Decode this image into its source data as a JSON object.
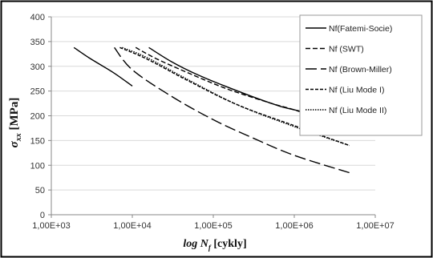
{
  "chart_data": {
    "type": "line",
    "xscale": "log",
    "xlim": [
      1000,
      10000000
    ],
    "ylim": [
      0,
      400
    ],
    "yticks": [
      0,
      50,
      100,
      150,
      200,
      250,
      300,
      350,
      400
    ],
    "xticks": [
      1000,
      10000,
      100000,
      1000000,
      10000000
    ],
    "ytick_labels": [
      "0",
      "50",
      "100",
      "150",
      "200",
      "250",
      "300",
      "350",
      "400"
    ],
    "xtick_labels": [
      "1,00E+03",
      "1,00E+04",
      "1,00E+05",
      "1,00E+06",
      "1,00E+07"
    ],
    "grid": "horizontal",
    "legend_position": "top-right",
    "ylabel": {
      "symbol": "σ",
      "sub": "xx",
      "unit": " [MPa]"
    },
    "xlabel": {
      "prefix": "log ",
      "symbol": "N",
      "sub": "f",
      "unit": " [cykly]"
    },
    "series": [
      {
        "name": "Nf(Fatemi-Socie)",
        "dash": "solid",
        "color": "#000000",
        "points": [
          [
            16000,
            338
          ],
          [
            30000,
            310
          ],
          [
            60000,
            285
          ],
          [
            150000,
            258
          ],
          [
            500000,
            226
          ],
          [
            1000000,
            212
          ],
          [
            4800000,
            190
          ]
        ]
      },
      {
        "name": "Nf (SWT)",
        "dash": "short",
        "color": "#000000",
        "points": [
          [
            11000,
            338
          ],
          [
            20000,
            315
          ],
          [
            50000,
            286
          ],
          [
            150000,
            254
          ],
          [
            500000,
            226
          ],
          [
            1000000,
            212
          ],
          [
            2500000,
            190
          ]
        ]
      },
      {
        "name": "Nf (Brown-Miller)",
        "dash": "long",
        "color": "#000000",
        "points": [
          [
            6000,
            338
          ],
          [
            10000,
            293
          ],
          [
            30000,
            240
          ],
          [
            100000,
            192
          ],
          [
            300000,
            156
          ],
          [
            1000000,
            120
          ],
          [
            5000000,
            84
          ]
        ]
      },
      {
        "name": "Nf (Liu Mode I)",
        "dash": "medium",
        "color": "#000000",
        "points": [
          [
            7000,
            338
          ],
          [
            15000,
            315
          ],
          [
            50000,
            270
          ],
          [
            200000,
            222
          ],
          [
            1000000,
            180
          ],
          [
            4800000,
            140
          ]
        ]
      },
      {
        "name": "Nf (Liu Mode II)",
        "dash": "dotted",
        "color": "#000000",
        "points": [
          [
            7500,
            338
          ],
          [
            15000,
            318
          ],
          [
            50000,
            272
          ],
          [
            200000,
            222
          ],
          [
            1000000,
            178
          ],
          [
            4800000,
            140
          ]
        ]
      }
    ],
    "extra_series": {
      "name": "",
      "dash": "solid",
      "points": [
        [
          1900,
          338
        ],
        [
          3000,
          316
        ],
        [
          6000,
          286
        ],
        [
          10000,
          260
        ]
      ]
    }
  }
}
